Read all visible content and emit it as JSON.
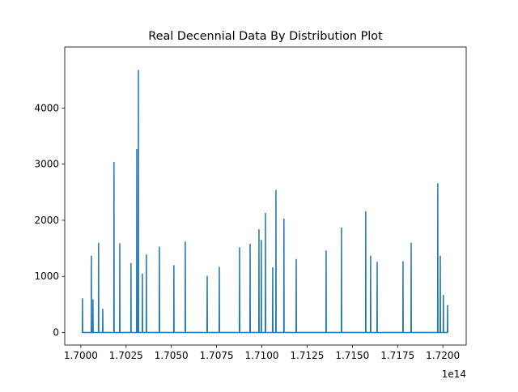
{
  "chart_data": {
    "type": "line",
    "title": "Real Decennial Data By Distribution Plot",
    "x_offset_label": "1e14",
    "xlim": [
      169911000000000.0,
      172129000000000.0
    ],
    "ylim": [
      -223,
      5087
    ],
    "xticks": [
      {
        "value": 170000000000000.0,
        "label": "1.7000"
      },
      {
        "value": 170250000000000.0,
        "label": "1.7025"
      },
      {
        "value": 170500000000000.0,
        "label": "1.7050"
      },
      {
        "value": 170750000000000.0,
        "label": "1.7075"
      },
      {
        "value": 171000000000000.0,
        "label": "1.7100"
      },
      {
        "value": 171250000000000.0,
        "label": "1.7125"
      },
      {
        "value": 171500000000000.0,
        "label": "1.7150"
      },
      {
        "value": 171750000000000.0,
        "label": "1.7175"
      },
      {
        "value": 172000000000000.0,
        "label": "1.7200"
      }
    ],
    "yticks": [
      0,
      1000,
      2000,
      3000,
      4000
    ],
    "series": [
      {
        "color": "#1f77b4",
        "x": [
          170008000000000.0,
          170009000000000.0,
          170010000000000.0,
          170057000000000.0,
          170058000000000.0,
          170059000000000.0,
          170066000000000.0,
          170067000000000.0,
          170068000000000.0,
          170097000000000.0,
          170098000000000.0,
          170099000000000.0,
          170120000000000.0,
          170121000000000.0,
          170122000000000.0,
          170182000000000.0,
          170183000000000.0,
          170184000000000.0,
          170214000000000.0,
          170215000000000.0,
          170216000000000.0,
          170276000000000.0,
          170277000000000.0,
          170278000000000.0,
          170308000000000.0,
          170309000000000.0,
          170310000000000.0,
          170317000000000.0,
          170318000000000.0,
          170319000000000.0,
          170339000000000.0,
          170340000000000.0,
          170341000000000.0,
          170361000000000.0,
          170362000000000.0,
          170363000000000.0,
          170433000000000.0,
          170434000000000.0,
          170435000000000.0,
          170513000000000.0,
          170514000000000.0,
          170515000000000.0,
          170576000000000.0,
          170577000000000.0,
          170578000000000.0,
          170697000000000.0,
          170698000000000.0,
          170699000000000.0,
          170764000000000.0,
          170765000000000.0,
          170766000000000.0,
          170876000000000.0,
          170877000000000.0,
          170878000000000.0,
          170934000000000.0,
          170935000000000.0,
          170936000000000.0,
          170983000000000.0,
          170984000000000.0,
          170985000000000.0,
          170996000000000.0,
          170997000000000.0,
          170998000000000.0,
          171019000000000.0,
          171020000000000.0,
          171021000000000.0,
          171059000000000.0,
          171060000000000.0,
          171061000000000.0,
          171077000000000.0,
          171078000000000.0,
          171079000000000.0,
          171121000000000.0,
          171122000000000.0,
          171123000000000.0,
          171189000000000.0,
          171190000000000.0,
          171191000000000.0,
          171354000000000.0,
          171355000000000.0,
          171356000000000.0,
          171439000000000.0,
          171440000000000.0,
          171441000000000.0,
          171573000000000.0,
          171574000000000.0,
          171575000000000.0,
          171600000000000.0,
          171601000000000.0,
          171602000000000.0,
          171636000000000.0,
          171637000000000.0,
          171638000000000.0,
          171779000000000.0,
          171780000000000.0,
          171781000000000.0,
          171824000000000.0,
          171825000000000.0,
          171826000000000.0,
          171971000000000.0,
          171972000000000.0,
          171973000000000.0,
          171985000000000.0,
          171986000000000.0,
          171987000000000.0,
          172002000000000.0,
          172003000000000.0,
          172004000000000.0,
          172025000000000.0,
          172026000000000.0,
          172027000000000.0
        ],
        "values": [
          0,
          610,
          0,
          0,
          1370,
          0,
          0,
          590,
          0,
          0,
          1600,
          0,
          0,
          420,
          0,
          0,
          3040,
          0,
          0,
          1590,
          0,
          0,
          1240,
          0,
          0,
          3270,
          0,
          0,
          4680,
          0,
          0,
          1050,
          0,
          0,
          1390,
          0,
          0,
          1530,
          0,
          0,
          1200,
          0,
          0,
          1620,
          0,
          0,
          1010,
          0,
          0,
          1170,
          0,
          0,
          1520,
          0,
          0,
          1580,
          0,
          0,
          1840,
          0,
          0,
          1650,
          0,
          0,
          2130,
          0,
          0,
          1160,
          0,
          0,
          2540,
          0,
          0,
          2030,
          0,
          0,
          1310,
          0,
          0,
          1460,
          0,
          0,
          1870,
          0,
          0,
          2160,
          0,
          0,
          1370,
          0,
          0,
          1260,
          0,
          0,
          1270,
          0,
          0,
          1600,
          0,
          0,
          2660,
          0,
          0,
          1370,
          0,
          0,
          670,
          0,
          0,
          490,
          0
        ]
      }
    ]
  }
}
